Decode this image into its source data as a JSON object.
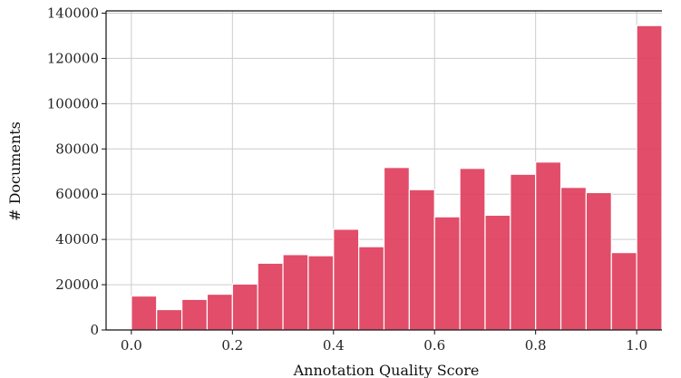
{
  "chart_data": {
    "type": "bar",
    "title": "",
    "xlabel": "Annotation Quality Score",
    "ylabel": "# Documents",
    "bin_width": 0.05,
    "bin_starts": [
      0.0,
      0.05,
      0.1,
      0.15,
      0.2,
      0.25,
      0.3,
      0.35,
      0.4,
      0.45,
      0.5,
      0.55,
      0.6,
      0.65,
      0.7,
      0.75,
      0.8,
      0.85,
      0.9,
      0.95,
      1.0
    ],
    "values": [
      15000,
      9000,
      13500,
      15800,
      20300,
      29500,
      33300,
      32800,
      44500,
      36800,
      71800,
      62000,
      50000,
      71400,
      50700,
      68800,
      74200,
      63000,
      60700,
      34200,
      134500
    ],
    "xlim": [
      -0.05,
      1.05
    ],
    "ylim": [
      0,
      141000
    ],
    "xticks": [
      0.0,
      0.2,
      0.4,
      0.6,
      0.8,
      1.0
    ],
    "xtick_labels": [
      "0.0",
      "0.2",
      "0.4",
      "0.6",
      "0.8",
      "1.0"
    ],
    "yticks": [
      0,
      20000,
      40000,
      60000,
      80000,
      100000,
      120000,
      140000
    ],
    "ytick_labels": [
      "0",
      "20000",
      "40000",
      "60000",
      "80000",
      "100000",
      "120000",
      "140000"
    ],
    "grid": true,
    "bar_color": "#e0405e",
    "bar_edge_color": "#ffffff"
  }
}
